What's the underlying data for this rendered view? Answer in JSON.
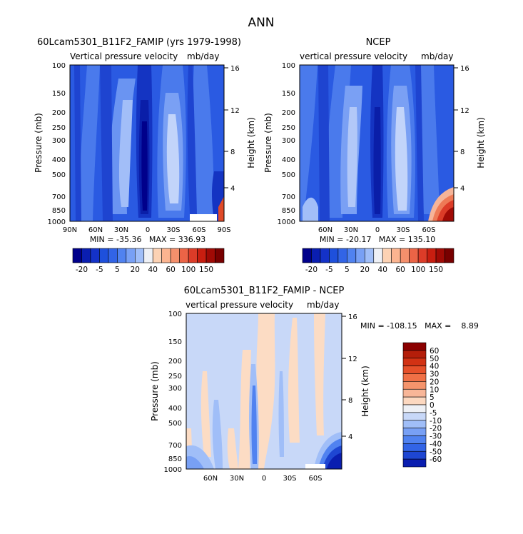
{
  "figure_title": "ANN",
  "panels": [
    {
      "id": "model",
      "left_title": "60Lcam5301_B11F2_FAMIP (yrs 1979-1998)",
      "subtitle_left": "Vertical pressure velocity",
      "subtitle_right": "mb/day",
      "ylabel": "Pressure (mb)",
      "ylabel_right": "Height (km)",
      "pressure_ticks": [
        "100",
        "150",
        "200",
        "250",
        "300",
        "400",
        "500",
        "700",
        "850",
        "1000"
      ],
      "height_ticks": [
        "16",
        "12",
        "8",
        "4"
      ],
      "x_ticks": [
        "90N",
        "60N",
        "30N",
        "0",
        "30S",
        "60S",
        "90S"
      ],
      "minmax": "MIN = -35.36   MAX = 336.93"
    },
    {
      "id": "obs",
      "center_title": "NCEP",
      "subtitle_left": "vertical pressure velocity",
      "subtitle_right": "mb/day",
      "ylabel": "Pressure (mb)",
      "ylabel_right": "Height (km)",
      "pressure_ticks": [
        "100",
        "150",
        "200",
        "250",
        "300",
        "400",
        "500",
        "700",
        "850",
        "1000"
      ],
      "height_ticks": [
        "16",
        "12",
        "8",
        "4"
      ],
      "x_ticks": [
        "60N",
        "30N",
        "0",
        "30S",
        "60S"
      ],
      "minmax": "MIN = -20.17   MAX = 135.10"
    },
    {
      "id": "diff",
      "center_title": "60Lcam5301_B11F2_FAMIP - NCEP",
      "subtitle_left": "vertical pressure velocity",
      "subtitle_right": "mb/day",
      "ylabel": "Pressure (mb)",
      "ylabel_right": "Height (km)",
      "pressure_ticks": [
        "100",
        "150",
        "200",
        "250",
        "300",
        "400",
        "500",
        "700",
        "850",
        "1000"
      ],
      "height_ticks": [
        "16",
        "12",
        "8",
        "4"
      ],
      "x_ticks": [
        "60N",
        "30N",
        "0",
        "30S",
        "60S"
      ],
      "minmax": "MIN = -108.15   MAX =    8.89"
    }
  ],
  "colorbar_top": {
    "labels": [
      "-20",
      "-5",
      "5",
      "20",
      "40",
      "60",
      "100",
      "150"
    ],
    "colors": [
      "#00008b",
      "#0a1eb0",
      "#1432c8",
      "#1e50dc",
      "#3264e6",
      "#5082f0",
      "#78a0f5",
      "#a0bef8",
      "#eef0f5",
      "#fcd2b4",
      "#fbb490",
      "#f5906c",
      "#eb6446",
      "#dc3c28",
      "#c81e10",
      "#a00a05",
      "#780000"
    ]
  },
  "colorbar_diff": {
    "labels": [
      "60",
      "50",
      "40",
      "30",
      "20",
      "10",
      "5",
      "0",
      "-5",
      "-10",
      "-20",
      "-30",
      "-40",
      "-50",
      "-60"
    ],
    "colors": [
      "#8b0000",
      "#b41e0a",
      "#d23214",
      "#e6502a",
      "#f07046",
      "#f5946c",
      "#f8b698",
      "#fcd8c0",
      "#eef0f5",
      "#c8d8f8",
      "#a0bef8",
      "#78a0f5",
      "#5082f0",
      "#3264e6",
      "#1e46d2",
      "#0a1eb0"
    ]
  },
  "chart_data": {
    "type": "heatmap",
    "title": "ANN",
    "variable": "Vertical pressure velocity",
    "units": "mb/day",
    "x_axis": [
      "90N",
      "60N",
      "30N",
      "0",
      "30S",
      "60S",
      "90S"
    ],
    "y_axis_pressure_mb": [
      100,
      150,
      200,
      250,
      300,
      400,
      500,
      700,
      850,
      1000
    ],
    "y_axis_height_km": [
      16,
      12,
      8,
      4
    ],
    "series": [
      {
        "name": "60Lcam5301_B11F2_FAMIP (yrs 1979-1998)",
        "min": -35.36,
        "max": 336.93
      },
      {
        "name": "NCEP",
        "min": -20.17,
        "max": 135.1
      },
      {
        "name": "60Lcam5301_B11F2_FAMIP - NCEP",
        "min": -108.15,
        "max": 8.89
      }
    ]
  }
}
